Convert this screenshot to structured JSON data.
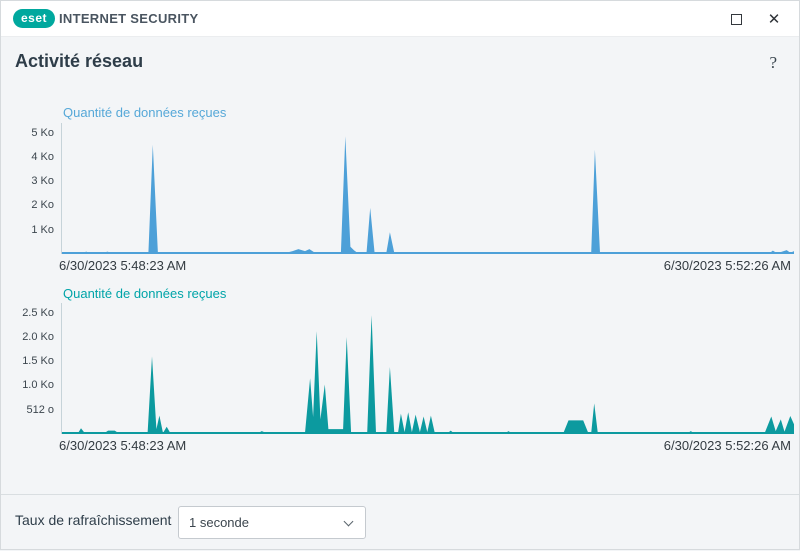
{
  "window": {
    "brand_logo": "eset",
    "brand_title": "INTERNET SECURITY",
    "icons": {
      "maximize": "maximize-icon",
      "close_glyph": "✕"
    }
  },
  "header": {
    "title": "Activité réseau",
    "help_glyph": "?"
  },
  "chart_data": [
    {
      "type": "area",
      "title": "Quantité de données reçues",
      "title_color": "#56a8d8",
      "color": "#4da0d8",
      "y_ticks": [
        "5 Ko",
        "4 Ko",
        "3 Ko",
        "2 Ko",
        "1 Ko"
      ],
      "y_tick_values_ko": [
        5,
        4,
        3,
        2,
        1
      ],
      "y_max_ko": 5.4,
      "x_start_label": "6/30/2023 5:48:23 AM",
      "x_end_label": "6/30/2023 5:52:26 AM",
      "grid": false,
      "points_pct_ko": [
        [
          0,
          0.04
        ],
        [
          2.8,
          0.04
        ],
        [
          3.3,
          0.1
        ],
        [
          3.8,
          0.04
        ],
        [
          5.6,
          0.04
        ],
        [
          6.2,
          0.1
        ],
        [
          6.8,
          0.04
        ],
        [
          11.8,
          0.04
        ],
        [
          12.4,
          4.5
        ],
        [
          13.1,
          0.04
        ],
        [
          30.5,
          0.04
        ],
        [
          31.5,
          0.12
        ],
        [
          32.3,
          0.2
        ],
        [
          33.2,
          0.12
        ],
        [
          33.8,
          0.2
        ],
        [
          34.6,
          0.04
        ],
        [
          38.1,
          0.04
        ],
        [
          38.7,
          4.85
        ],
        [
          39.4,
          0.3
        ],
        [
          39.9,
          0.15
        ],
        [
          40.4,
          0.04
        ],
        [
          41.6,
          0.04
        ],
        [
          42.1,
          1.9
        ],
        [
          42.7,
          0.04
        ],
        [
          44.3,
          0.04
        ],
        [
          44.8,
          0.9
        ],
        [
          45.4,
          0.04
        ],
        [
          52.4,
          0.02
        ],
        [
          52.8,
          0.07
        ],
        [
          53.2,
          0.02
        ],
        [
          72.3,
          0.04
        ],
        [
          72.8,
          4.3
        ],
        [
          73.5,
          0.04
        ],
        [
          85.9,
          0.02
        ],
        [
          86.2,
          0.06
        ],
        [
          86.5,
          0.02
        ],
        [
          96.6,
          0.02
        ],
        [
          97.1,
          0.14
        ],
        [
          97.7,
          0.03
        ],
        [
          99.0,
          0.16
        ],
        [
          99.5,
          0.05
        ],
        [
          100,
          0.12
        ]
      ]
    },
    {
      "type": "area",
      "title": "Quantité de données reçues",
      "title_color": "#00a4a8",
      "color": "#0c9a9f",
      "y_ticks": [
        "2.5 Ko",
        "2.0 Ko",
        "1.5 Ko",
        "1.0 Ko",
        "512 o"
      ],
      "y_tick_values_ko": [
        2.5,
        2.0,
        1.5,
        1.0,
        0.5
      ],
      "y_max_ko": 2.7,
      "x_start_label": "6/30/2023 5:48:23 AM",
      "x_end_label": "6/30/2023 5:52:26 AM",
      "grid": false,
      "points_pct_ko": [
        [
          0,
          0.02
        ],
        [
          2.2,
          0.02
        ],
        [
          2.6,
          0.12
        ],
        [
          3.1,
          0.02
        ],
        [
          5.8,
          0.02
        ],
        [
          6.3,
          0.07
        ],
        [
          7.2,
          0.07
        ],
        [
          7.7,
          0.02
        ],
        [
          11.7,
          0.02
        ],
        [
          12.3,
          1.6
        ],
        [
          12.9,
          0.1
        ],
        [
          13.3,
          0.38
        ],
        [
          13.8,
          0.02
        ],
        [
          14.3,
          0.15
        ],
        [
          14.8,
          0.02
        ],
        [
          26.8,
          0.02
        ],
        [
          27.3,
          0.06
        ],
        [
          27.9,
          0.02
        ],
        [
          33.2,
          0.02
        ],
        [
          33.9,
          1.15
        ],
        [
          34.3,
          0.35
        ],
        [
          34.8,
          2.12
        ],
        [
          35.3,
          0.3
        ],
        [
          35.9,
          1.02
        ],
        [
          36.4,
          0.1
        ],
        [
          38.4,
          0.1
        ],
        [
          38.9,
          2.0
        ],
        [
          39.5,
          0.02
        ],
        [
          41.7,
          0.02
        ],
        [
          42.3,
          2.45
        ],
        [
          42.9,
          0.02
        ],
        [
          44.3,
          0.02
        ],
        [
          44.8,
          1.38
        ],
        [
          45.4,
          0.02
        ],
        [
          45.9,
          0.02
        ],
        [
          46.3,
          0.42
        ],
        [
          46.8,
          0.04
        ],
        [
          47.3,
          0.45
        ],
        [
          47.8,
          0.04
        ],
        [
          48.3,
          0.4
        ],
        [
          48.9,
          0.04
        ],
        [
          49.4,
          0.36
        ],
        [
          49.9,
          0.04
        ],
        [
          50.4,
          0.38
        ],
        [
          50.9,
          0.04
        ],
        [
          52.7,
          0.02
        ],
        [
          53.1,
          0.07
        ],
        [
          53.5,
          0.02
        ],
        [
          60.6,
          0.02
        ],
        [
          61.0,
          0.06
        ],
        [
          61.4,
          0.02
        ],
        [
          68.5,
          0.02
        ],
        [
          69.2,
          0.28
        ],
        [
          71.2,
          0.28
        ],
        [
          71.9,
          0.02
        ],
        [
          72.3,
          0.02
        ],
        [
          72.7,
          0.63
        ],
        [
          73.2,
          0.02
        ],
        [
          85.5,
          0.02
        ],
        [
          85.9,
          0.06
        ],
        [
          86.3,
          0.02
        ],
        [
          96.0,
          0.02
        ],
        [
          96.9,
          0.36
        ],
        [
          97.5,
          0.06
        ],
        [
          98.2,
          0.3
        ],
        [
          98.7,
          0.05
        ],
        [
          99.5,
          0.37
        ],
        [
          100,
          0.2
        ]
      ]
    }
  ],
  "footer": {
    "refresh_label": "Taux de rafraîchissement",
    "refresh_value": "1 seconde"
  }
}
